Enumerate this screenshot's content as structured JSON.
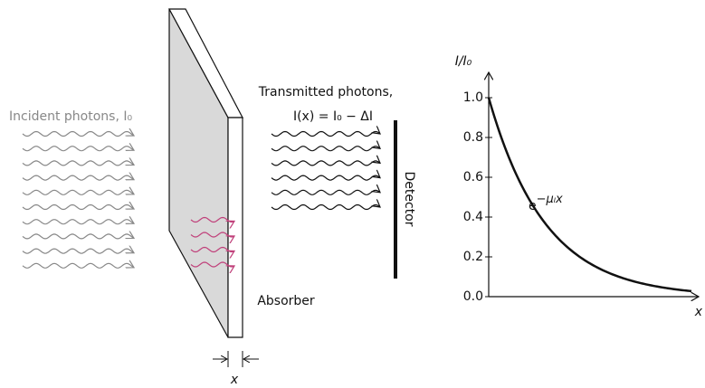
{
  "incident_label": "Incident photons, I₀",
  "transmitted_label": "Transmitted photons,",
  "transmitted_formula": "I(x) = I₀ − ΔI",
  "absorber_label": "Absorber",
  "detector_label": "Detector",
  "thickness_label": "x",
  "graph": {
    "y_label": "I/I₀",
    "x_label": "x",
    "curve_label": {
      "base": "e",
      "exponent": "−μₗx"
    },
    "yticks": [
      {
        "value": 0,
        "label": "0.0"
      },
      0.2,
      0.4,
      0.6,
      0.8,
      {
        "value": 1,
        "label": "1.0"
      }
    ],
    "ylim": [
      0,
      1
    ]
  }
}
